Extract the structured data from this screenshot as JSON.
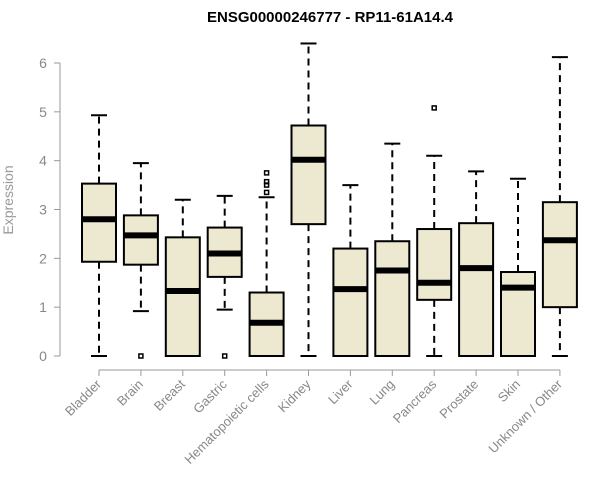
{
  "chart_data": {
    "type": "boxplot",
    "title": "ENSG00000246777 - RP11-61A14.4",
    "ylabel": "Expression",
    "xlabel": "",
    "ylim": [
      0,
      6.4
    ],
    "yticks": [
      0,
      1,
      2,
      3,
      4,
      5,
      6
    ],
    "grid": false,
    "colors": {
      "box_fill": "#ede8d0",
      "box_stroke": "#000000",
      "axis": "#999999",
      "tick_text": "#888888"
    },
    "categories": [
      "Bladder",
      "Brain",
      "Breast",
      "Gastric",
      "Hematopoietic cells",
      "Kidney",
      "Liver",
      "Lung",
      "Pancreas",
      "Prostate",
      "Skin",
      "Unknown / Other"
    ],
    "boxes": [
      {
        "category": "Bladder",
        "whisker_low": 0,
        "q1": 1.93,
        "median": 2.8,
        "q3": 3.53,
        "whisker_high": 4.93,
        "outliers": []
      },
      {
        "category": "Brain",
        "whisker_low": 0.92,
        "q1": 1.87,
        "median": 2.47,
        "q3": 2.88,
        "whisker_high": 3.95,
        "outliers": [
          0
        ]
      },
      {
        "category": "Breast",
        "whisker_low": 0,
        "q1": 0,
        "median": 1.33,
        "q3": 2.43,
        "whisker_high": 3.2,
        "outliers": []
      },
      {
        "category": "Gastric",
        "whisker_low": 0.95,
        "q1": 1.62,
        "median": 2.1,
        "q3": 2.63,
        "whisker_high": 3.28,
        "outliers": [
          0
        ]
      },
      {
        "category": "Hematopoietic cells",
        "whisker_low": 0,
        "q1": 0,
        "median": 0.68,
        "q3": 1.3,
        "whisker_high": 3.25,
        "outliers": [
          3.35,
          3.5,
          3.57,
          3.75
        ]
      },
      {
        "category": "Kidney",
        "whisker_low": 0,
        "q1": 2.7,
        "median": 4.02,
        "q3": 4.72,
        "whisker_high": 6.4,
        "outliers": []
      },
      {
        "category": "Liver",
        "whisker_low": 0,
        "q1": 0,
        "median": 1.37,
        "q3": 2.2,
        "whisker_high": 3.5,
        "outliers": []
      },
      {
        "category": "Lung",
        "whisker_low": 0,
        "q1": 0,
        "median": 1.75,
        "q3": 2.35,
        "whisker_high": 4.35,
        "outliers": []
      },
      {
        "category": "Pancreas",
        "whisker_low": 0,
        "q1": 1.15,
        "median": 1.5,
        "q3": 2.6,
        "whisker_high": 4.1,
        "outliers": [
          5.08
        ]
      },
      {
        "category": "Prostate",
        "whisker_low": 0,
        "q1": 0,
        "median": 1.8,
        "q3": 2.72,
        "whisker_high": 3.78,
        "outliers": []
      },
      {
        "category": "Skin",
        "whisker_low": 0,
        "q1": 0,
        "median": 1.4,
        "q3": 1.72,
        "whisker_high": 3.63,
        "outliers": []
      },
      {
        "category": "Unknown / Other",
        "whisker_low": 0,
        "q1": 1.0,
        "median": 2.37,
        "q3": 3.15,
        "whisker_high": 6.12,
        "outliers": []
      }
    ]
  }
}
